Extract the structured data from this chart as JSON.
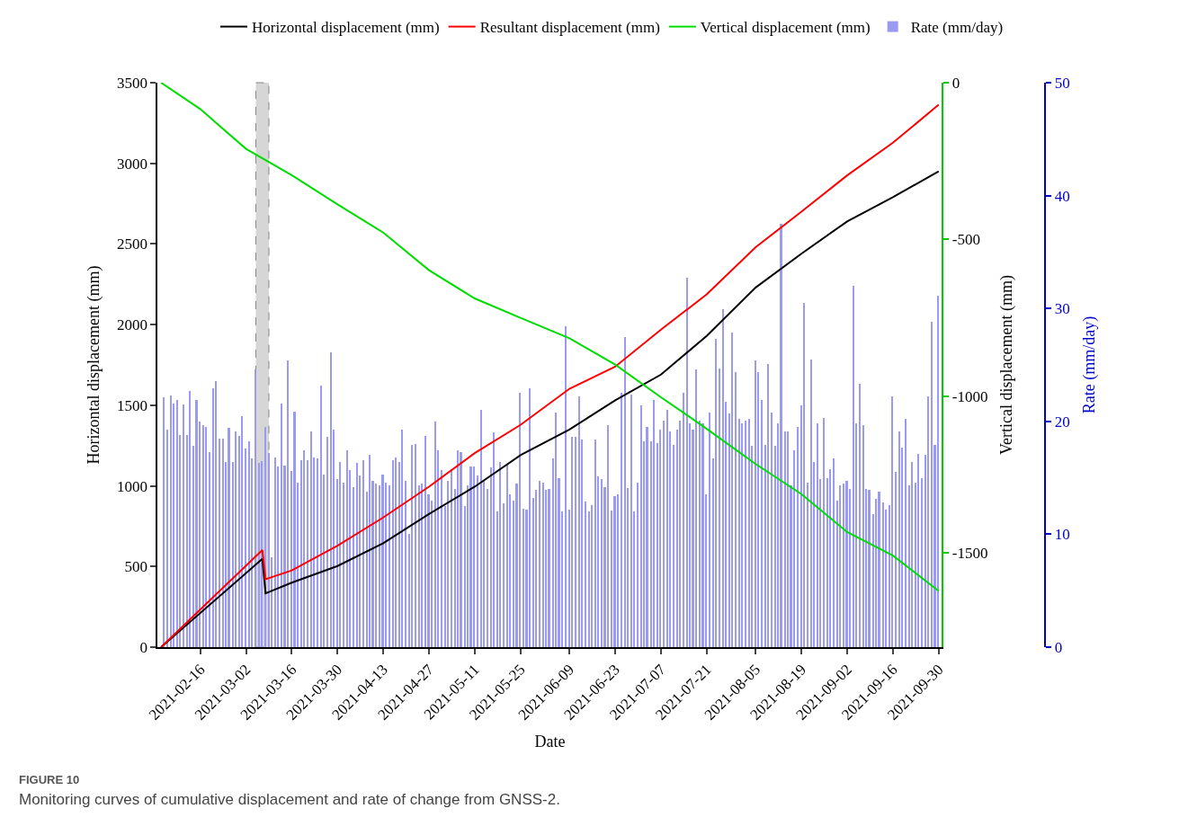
{
  "chart_data": {
    "type": "line",
    "xlabel": "Date",
    "ylabel": "Horizontal displacement (mm)",
    "y2label": "Vertical displacement (mm)",
    "y3label": "Rate (mm/day)",
    "xlim": [
      "2021-02-03",
      "2021-10-01"
    ],
    "xticks": [
      "2021-02-16",
      "2021-03-02",
      "2021-03-16",
      "2021-03-30",
      "2021-04-13",
      "2021-04-27",
      "2021-05-11",
      "2021-05-25",
      "2021-06-09",
      "2021-06-23",
      "2021-07-07",
      "2021-07-21",
      "2021-08-05",
      "2021-08-19",
      "2021-09-02",
      "2021-09-16",
      "2021-09-30"
    ],
    "ylim": [
      0,
      3500
    ],
    "yticks": [
      0,
      500,
      1000,
      1500,
      2000,
      2500,
      3000,
      3500
    ],
    "y2lim": [
      -1800,
      0
    ],
    "y2ticks": [
      -1500,
      -1000,
      -500,
      0
    ],
    "y3lim": [
      0,
      50
    ],
    "y3ticks": [
      0,
      10,
      20,
      30,
      40,
      50
    ],
    "legend": "top",
    "grid": false,
    "bands": [
      {
        "axis": "x",
        "from": "2021-03-05",
        "to": "2021-03-09",
        "color": "#cccccc"
      }
    ],
    "annotations": [
      "FIGURE 10",
      "Monitoring curves of cumulative displacement and rate of change from GNSS-2."
    ],
    "series": [
      {
        "name": "Horizontal displacement (mm)",
        "color": "#000000",
        "x": [
          "2021-02-04",
          "2021-03-07",
          "2021-03-08",
          "2021-03-16",
          "2021-03-30",
          "2021-04-13",
          "2021-04-27",
          "2021-05-11",
          "2021-05-25",
          "2021-06-09",
          "2021-06-23",
          "2021-07-07",
          "2021-07-21",
          "2021-08-05",
          "2021-08-19",
          "2021-09-02",
          "2021-09-16",
          "2021-09-30"
        ],
        "values": [
          0,
          547,
          334,
          400,
          503,
          645,
          825,
          995,
          1190,
          1350,
          1530,
          1690,
          1930,
          2230,
          2440,
          2640,
          2790,
          2950
        ]
      },
      {
        "name": "Resultant displacement (mm)",
        "color": "#ff0000",
        "x": [
          "2021-02-04",
          "2021-03-07",
          "2021-03-08",
          "2021-03-16",
          "2021-03-30",
          "2021-04-13",
          "2021-04-27",
          "2021-05-11",
          "2021-05-25",
          "2021-06-09",
          "2021-06-23",
          "2021-07-07",
          "2021-07-21",
          "2021-08-05",
          "2021-08-19",
          "2021-09-02",
          "2021-09-16",
          "2021-09-30"
        ],
        "values": [
          0,
          602,
          421,
          476,
          629,
          804,
          995,
          1203,
          1378,
          1602,
          1739,
          1969,
          2187,
          2480,
          2700,
          2925,
          3128,
          3363
        ]
      },
      {
        "name": "Vertical displacement (mm)",
        "axis": "y2",
        "color": "#00dd00",
        "x": [
          "2021-02-04",
          "2021-02-16",
          "2021-03-02",
          "2021-03-16",
          "2021-03-30",
          "2021-04-13",
          "2021-04-27",
          "2021-05-11",
          "2021-05-25",
          "2021-06-09",
          "2021-06-23",
          "2021-07-07",
          "2021-07-14",
          "2021-07-21",
          "2021-08-05",
          "2021-08-19",
          "2021-09-02",
          "2021-09-16",
          "2021-09-30"
        ],
        "values": [
          0,
          -84,
          -211,
          -295,
          -388,
          -478,
          -598,
          -688,
          -750,
          -815,
          -899,
          -1003,
          -1053,
          -1104,
          -1216,
          -1312,
          -1433,
          -1508,
          -1621
        ]
      },
      {
        "name": "Rate (mm/day)",
        "type": "bar",
        "axis": "y3",
        "color": "#9a9af0",
        "x": [
          "2021-02-05",
          "2021-02-06",
          "2021-02-07",
          "2021-02-08",
          "2021-02-09",
          "2021-02-10",
          "2021-02-11",
          "2021-02-12",
          "2021-02-13",
          "2021-02-14",
          "2021-02-15",
          "2021-02-16",
          "2021-02-17",
          "2021-02-18",
          "2021-02-19",
          "2021-02-20",
          "2021-02-21",
          "2021-02-22",
          "2021-02-23",
          "2021-02-24",
          "2021-02-25",
          "2021-02-26",
          "2021-02-27",
          "2021-02-28",
          "2021-03-01",
          "2021-03-02",
          "2021-03-03",
          "2021-03-04",
          "2021-03-05",
          "2021-03-06",
          "2021-03-07",
          "2021-03-08",
          "2021-03-09",
          "2021-03-10",
          "2021-03-11",
          "2021-03-12",
          "2021-03-13",
          "2021-03-14",
          "2021-03-15",
          "2021-03-16",
          "2021-03-17",
          "2021-03-18",
          "2021-03-19",
          "2021-03-20",
          "2021-03-21",
          "2021-03-22",
          "2021-03-23",
          "2021-03-24",
          "2021-03-25",
          "2021-03-26",
          "2021-03-27",
          "2021-03-28",
          "2021-03-29",
          "2021-03-30",
          "2021-03-31",
          "2021-04-01",
          "2021-04-02",
          "2021-04-03",
          "2021-04-04",
          "2021-04-05",
          "2021-04-06",
          "2021-04-07",
          "2021-04-08",
          "2021-04-09",
          "2021-04-10",
          "2021-04-11",
          "2021-04-12",
          "2021-04-13",
          "2021-04-14",
          "2021-04-15",
          "2021-04-16",
          "2021-04-17",
          "2021-04-18",
          "2021-04-19",
          "2021-04-20",
          "2021-04-21",
          "2021-04-22",
          "2021-04-23",
          "2021-04-24",
          "2021-04-25",
          "2021-04-26",
          "2021-04-27",
          "2021-04-28",
          "2021-04-29",
          "2021-04-30",
          "2021-05-01",
          "2021-05-02",
          "2021-05-03",
          "2021-05-04",
          "2021-05-05",
          "2021-05-06",
          "2021-05-07",
          "2021-05-08",
          "2021-05-09",
          "2021-05-10",
          "2021-05-11",
          "2021-05-12",
          "2021-05-13",
          "2021-05-14",
          "2021-05-15",
          "2021-05-16",
          "2021-05-17",
          "2021-05-18",
          "2021-05-19",
          "2021-05-20",
          "2021-05-21",
          "2021-05-22",
          "2021-05-23",
          "2021-05-24",
          "2021-05-25",
          "2021-05-26",
          "2021-05-27",
          "2021-05-28",
          "2021-05-29",
          "2021-05-30",
          "2021-05-31",
          "2021-06-01",
          "2021-06-02",
          "2021-06-03",
          "2021-06-04",
          "2021-06-05",
          "2021-06-06",
          "2021-06-07",
          "2021-06-08",
          "2021-06-09",
          "2021-06-10",
          "2021-06-11",
          "2021-06-12",
          "2021-06-13",
          "2021-06-14",
          "2021-06-15",
          "2021-06-16",
          "2021-06-17",
          "2021-06-18",
          "2021-06-19",
          "2021-06-20",
          "2021-06-21",
          "2021-06-22",
          "2021-06-23",
          "2021-06-24",
          "2021-06-25",
          "2021-06-26",
          "2021-06-27",
          "2021-06-28",
          "2021-06-29",
          "2021-06-30",
          "2021-07-01",
          "2021-07-02",
          "2021-07-03",
          "2021-07-04",
          "2021-07-05",
          "2021-07-06",
          "2021-07-07",
          "2021-07-08",
          "2021-07-09",
          "2021-07-10",
          "2021-07-11",
          "2021-07-12",
          "2021-07-13",
          "2021-07-14",
          "2021-07-15",
          "2021-07-16",
          "2021-07-17",
          "2021-07-18",
          "2021-07-19",
          "2021-07-20",
          "2021-07-21",
          "2021-07-22",
          "2021-07-23",
          "2021-07-24",
          "2021-07-25",
          "2021-07-26",
          "2021-07-27",
          "2021-07-28",
          "2021-07-29",
          "2021-07-30",
          "2021-07-31",
          "2021-08-01",
          "2021-08-02",
          "2021-08-03",
          "2021-08-04",
          "2021-08-05",
          "2021-08-06",
          "2021-08-07",
          "2021-08-08",
          "2021-08-09",
          "2021-08-10",
          "2021-08-11",
          "2021-08-12",
          "2021-08-13",
          "2021-08-14",
          "2021-08-15",
          "2021-08-16",
          "2021-08-17",
          "2021-08-18",
          "2021-08-19",
          "2021-08-20",
          "2021-08-21",
          "2021-08-22",
          "2021-08-23",
          "2021-08-24",
          "2021-08-25",
          "2021-08-26",
          "2021-08-27",
          "2021-08-28",
          "2021-08-29",
          "2021-08-30",
          "2021-08-31",
          "2021-09-01",
          "2021-09-02",
          "2021-09-03",
          "2021-09-04",
          "2021-09-05",
          "2021-09-06",
          "2021-09-07",
          "2021-09-08",
          "2021-09-09",
          "2021-09-10",
          "2021-09-11",
          "2021-09-12",
          "2021-09-13",
          "2021-09-14",
          "2021-09-15",
          "2021-09-16",
          "2021-09-17",
          "2021-09-18",
          "2021-09-19",
          "2021-09-20",
          "2021-09-21",
          "2021-09-22",
          "2021-09-23",
          "2021-09-24",
          "2021-09-25",
          "2021-09-26",
          "2021-09-27",
          "2021-09-28",
          "2021-09-29",
          "2021-09-30"
        ],
        "values": [
          22.1,
          19.3,
          22.3,
          21.6,
          21.9,
          18.8,
          21.5,
          18.8,
          22.7,
          17.8,
          21.9,
          20.0,
          19.7,
          19.5,
          17.3,
          22.9,
          23.6,
          18.5,
          18.5,
          16.4,
          19.4,
          16.4,
          19.1,
          18.7,
          20.5,
          17.6,
          18.2,
          16.7,
          24.6,
          16.3,
          16.5,
          19.5,
          17.2,
          8,
          16.8,
          16.0,
          21.6,
          16.1,
          25.4,
          15.6,
          20.9,
          14.6,
          16.6,
          17.4,
          16.6,
          19.1,
          16.8,
          16.7,
          23.2,
          15.3,
          18.6,
          26.1,
          19.3,
          14.9,
          16.4,
          14.6,
          17.4,
          15.7,
          14.2,
          16.3,
          15.2,
          16.6,
          13.8,
          17.0,
          14.7,
          14.5,
          14.3,
          15.3,
          14.6,
          14.3,
          16.6,
          16.8,
          16.4,
          19.3,
          14.7,
          10,
          17.9,
          18.0,
          14.3,
          14.5,
          18.7,
          13.5,
          13.0,
          20.0,
          17.4,
          15.7,
          12.5,
          14.7,
          15.8,
          14.0,
          17.4,
          17.3,
          12.5,
          14.3,
          16.0,
          16.0,
          15.2,
          21.0,
          14.7,
          14.0,
          15.9,
          19.0,
          12.0,
          16.4,
          12.7,
          16.2,
          13.5,
          13.0,
          14.5,
          22.5,
          12.3,
          12.2,
          22.9,
          13.2,
          13.9,
          14.7,
          14.6,
          13.9,
          14.0,
          16.7,
          20.8,
          15.0,
          12.0,
          28.4,
          12.2,
          18.6,
          18.6,
          22.2,
          18.4,
          12.9,
          12.0,
          12.6,
          18.4,
          15.1,
          14.9,
          14.2,
          19.7,
          12.1,
          13.4,
          13.5,
          22.5,
          27.5,
          14.1,
          22.4,
          12.0,
          14.6,
          21.4,
          18.2,
          19.5,
          18.2,
          21.9,
          18.1,
          19.3,
          20.1,
          21.0,
          19.1,
          17.9,
          19.3,
          20.1,
          22.5,
          32.7,
          19.8,
          19.3,
          24.6,
          20.1,
          19.8,
          13.5,
          20.8,
          16.7,
          27.3,
          24.7,
          29.9,
          21.7,
          20.7,
          27.9,
          24.4,
          20.2,
          19.8,
          20.1,
          20.2,
          17.8,
          25.4,
          24.4,
          21.9,
          17.9,
          25.1,
          20.8,
          17.8,
          19.8,
          37.5,
          19.1,
          19.1,
          14.3,
          17.4,
          19.5,
          21.4,
          30.5,
          14.6,
          25.5,
          16.4,
          19.8,
          14.9,
          20.3,
          15.0,
          15.8,
          16.7,
          13.0,
          14.3,
          14.5,
          14.7,
          14.0,
          32.0,
          19.8,
          23.3,
          19.7,
          14.0,
          13.9,
          11.8,
          13.1,
          13.8,
          12.8,
          12.2,
          12.6,
          22.2,
          15.5,
          19.1,
          17.7,
          20.2,
          14.3,
          16.4,
          14.6,
          17.1,
          15.0,
          17.0,
          22.2,
          28.8,
          17.9,
          31.1
        ]
      }
    ]
  }
}
